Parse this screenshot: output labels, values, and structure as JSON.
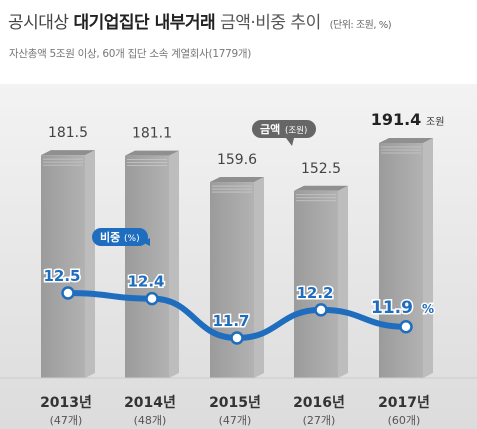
{
  "header": {
    "title_part1": "공시대상",
    "title_part2": "대기업집단 내부거래",
    "title_part3": "금액·비중 추이",
    "unit": "(단위: 조원, %)",
    "subtitle": "자산총액 5조원 이상, 60개 집단 소속 계열회사(1779개)"
  },
  "colors": {
    "panel_bg": "#e9e9e9",
    "bar_front": "#a6a6a6",
    "bar_side": "#bdbdbd",
    "bar_top": "#8f8f8f",
    "line": "#1f6dbf",
    "label_callout": "#666666",
    "blue_callout": "#1f6dbf"
  },
  "chart_data": {
    "type": "bar",
    "categories": [
      "2013년",
      "2014년",
      "2015년",
      "2016년",
      "2017년"
    ],
    "category_notes": [
      "(47개)",
      "(48개)",
      "(47개)",
      "(27개)",
      "(60개)"
    ],
    "series": [
      {
        "name": "금액(조원)",
        "type": "bar",
        "values": [
          181.5,
          181.1,
          159.6,
          152.5,
          191.4
        ],
        "labels": [
          "181.5",
          "181.1",
          "159.6",
          "152.5",
          "191.4"
        ],
        "last_label_unit": "조원"
      },
      {
        "name": "비중(%)",
        "type": "line",
        "values": [
          12.5,
          12.4,
          11.7,
          12.2,
          11.9
        ],
        "labels": [
          "12.5",
          "12.4",
          "11.7",
          "12.2",
          "11.9"
        ],
        "last_label_unit": "%"
      }
    ],
    "legend": {
      "bar_label": "금액",
      "bar_unit": "(조원)",
      "line_label": "비중",
      "line_unit": "(%)"
    },
    "ylim": [
      0,
      200
    ],
    "line_ylim": [
      11.0,
      13.5
    ]
  }
}
